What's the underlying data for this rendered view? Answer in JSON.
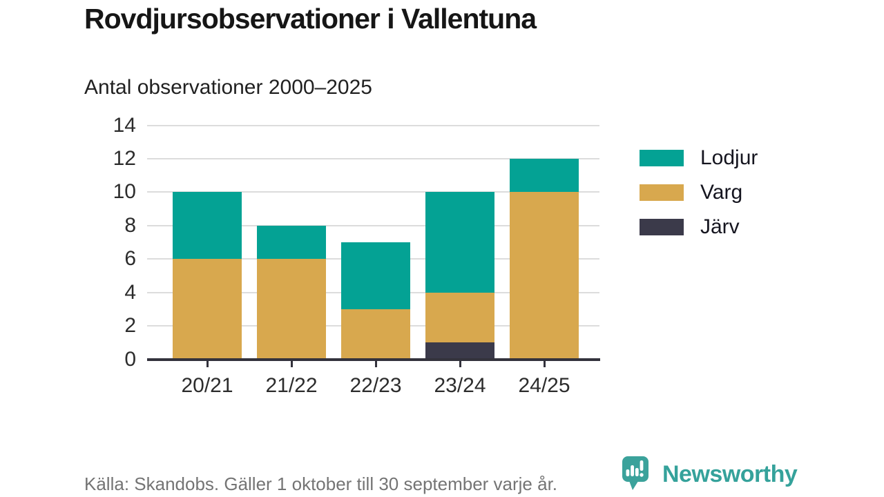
{
  "chart_data": {
    "type": "bar",
    "stacked": true,
    "title": "Rovdjursobservationer i Vallentuna",
    "subtitle": "Antal observationer 2000–2025",
    "categories": [
      "20/21",
      "21/22",
      "22/23",
      "23/24",
      "24/25"
    ],
    "series": [
      {
        "name": "Lodjur",
        "color": "#04a294",
        "values": [
          4,
          2,
          4,
          6,
          2
        ]
      },
      {
        "name": "Varg",
        "color": "#d8a84e",
        "values": [
          6,
          6,
          3,
          3,
          10
        ]
      },
      {
        "name": "Järv",
        "color": "#3b3a4a",
        "values": [
          0,
          0,
          0,
          1,
          0
        ]
      }
    ],
    "stack_order_bottom_to_top": [
      "Järv",
      "Varg",
      "Lodjur"
    ],
    "totals": [
      10,
      8,
      7,
      10,
      12
    ],
    "y_ticks": [
      0,
      2,
      4,
      6,
      8,
      10,
      12,
      14
    ],
    "ylim": [
      0,
      14
    ],
    "xlabel": "",
    "ylabel": "",
    "grid": "horizontal",
    "legend_position": "right"
  },
  "colors": {
    "gridline": "#dcdcdc",
    "axis": "#33323c",
    "title_text": "#161616",
    "tick_text": "#2c2c2c",
    "source_text": "#747474",
    "brand_teal": "#35a29b"
  },
  "footer": {
    "source": "Källa: Skandobs. Gäller 1 oktober till 30 september varje år.",
    "brand": "Newsworthy"
  }
}
